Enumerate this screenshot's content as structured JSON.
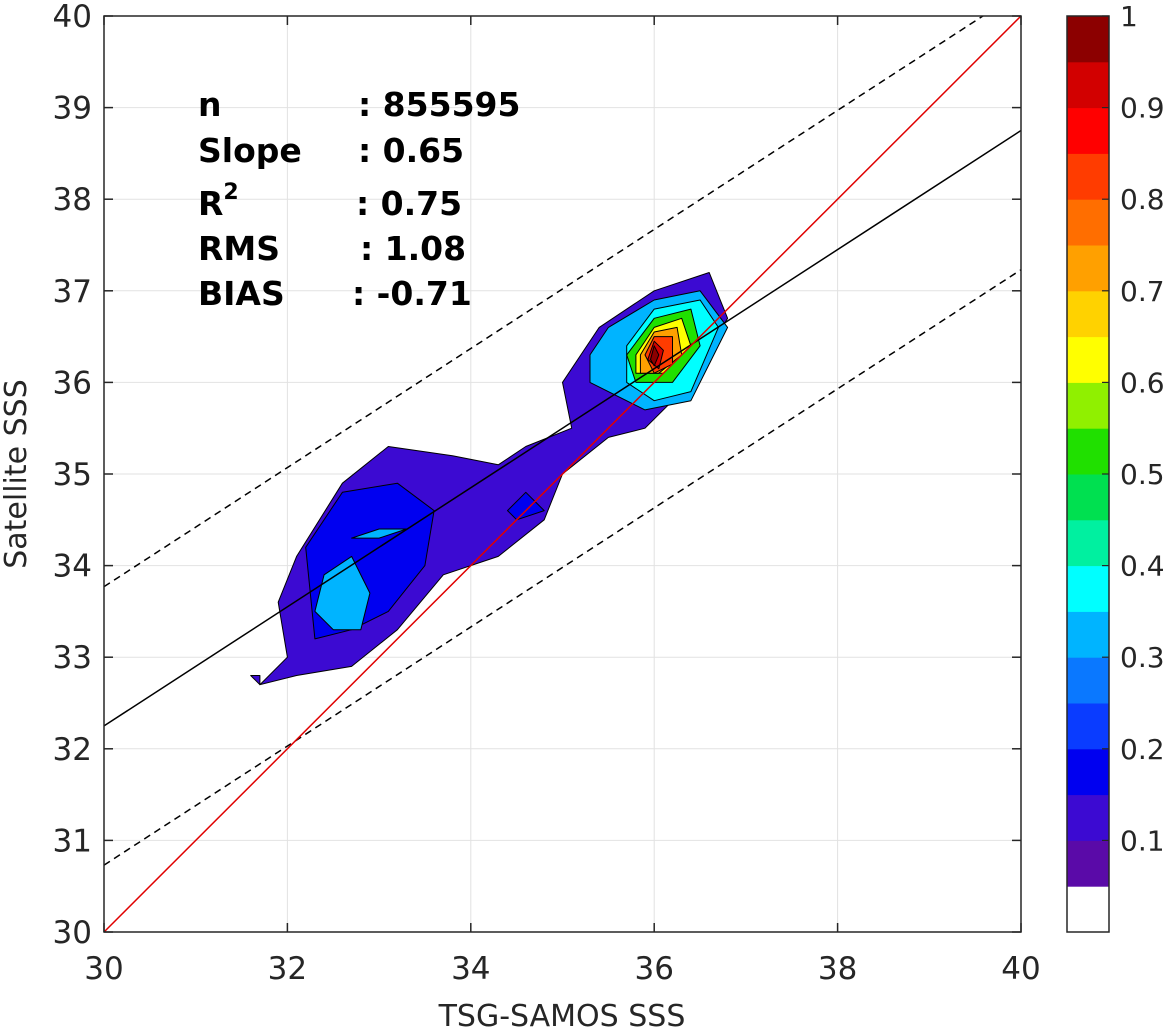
{
  "chart_data": {
    "type": "contour-density",
    "xlabel": "TSG-SAMOS SSS",
    "ylabel": "Satellite SSS",
    "xlim": [
      30,
      40
    ],
    "ylim": [
      30,
      40
    ],
    "xticks": [
      30,
      32,
      34,
      36,
      38,
      40
    ],
    "yticks": [
      30,
      31,
      32,
      33,
      34,
      35,
      36,
      37,
      38,
      39,
      40
    ],
    "grid": true,
    "stats": [
      {
        "label": "n",
        "value": ": 855595"
      },
      {
        "label": "Slope",
        "value": ": 0.65"
      },
      {
        "label": "R",
        "sup": "2",
        "value": ": 0.75"
      },
      {
        "label": "RMS",
        "value": ": 1.08"
      },
      {
        "label": "BIAS",
        "value": ": -0.71"
      }
    ],
    "lines": {
      "one_to_one": {
        "slope": 1,
        "intercept": 0,
        "color": "#e00000"
      },
      "regression": {
        "slope": 0.65,
        "intercept": 12.75,
        "color": "#000000"
      },
      "upper_bound": {
        "slope": 0.65,
        "intercept": 14.27,
        "style": "dashed"
      },
      "lower_bound": {
        "slope": 0.65,
        "intercept": 11.23,
        "style": "dashed"
      }
    },
    "colorbar": {
      "ticks": [
        "0.1",
        "0.2",
        "0.3",
        "0.4",
        "0.5",
        "0.6",
        "0.7",
        "0.8",
        "0.9",
        "1"
      ],
      "colors": [
        "#ffffff",
        "#5a0aa8",
        "#3c0ad2",
        "#0000f0",
        "#0a3cff",
        "#0a78ff",
        "#00b4ff",
        "#00ffff",
        "#00f0a0",
        "#00e050",
        "#20e000",
        "#90f000",
        "#ffff00",
        "#ffd200",
        "#ffa000",
        "#ff6e00",
        "#ff3c00",
        "#ff0000",
        "#d20000",
        "#8c0000"
      ]
    },
    "contour_levels": [
      {
        "level": 0.1,
        "regions": [
          [
            [
              31.7,
              32.7
            ],
            [
              32.0,
              33.0
            ],
            [
              31.9,
              33.6
            ],
            [
              32.1,
              34.1
            ],
            [
              32.6,
              34.9
            ],
            [
              33.1,
              35.3
            ],
            [
              33.8,
              35.2
            ],
            [
              34.3,
              35.1
            ],
            [
              34.6,
              35.3
            ],
            [
              35.1,
              35.5
            ],
            [
              35.0,
              36.0
            ],
            [
              35.4,
              36.6
            ],
            [
              36.0,
              37.0
            ],
            [
              36.6,
              37.2
            ],
            [
              36.8,
              36.7
            ],
            [
              36.3,
              35.9
            ],
            [
              35.9,
              35.5
            ],
            [
              35.5,
              35.4
            ],
            [
              35.0,
              35.0
            ],
            [
              34.8,
              34.5
            ],
            [
              34.3,
              34.1
            ],
            [
              33.7,
              33.9
            ],
            [
              33.2,
              33.3
            ],
            [
              32.7,
              32.9
            ],
            [
              32.1,
              32.8
            ],
            [
              31.7,
              32.7
            ]
          ],
          [
            [
              31.6,
              32.8
            ],
            [
              31.7,
              32.7
            ],
            [
              31.7,
              32.8
            ]
          ]
        ]
      },
      {
        "level": 0.15,
        "regions": [
          [
            [
              32.3,
              33.2
            ],
            [
              32.2,
              34.2
            ],
            [
              32.6,
              34.8
            ],
            [
              33.2,
              34.9
            ],
            [
              33.6,
              34.6
            ],
            [
              33.5,
              34.0
            ],
            [
              33.1,
              33.5
            ],
            [
              32.7,
              33.3
            ],
            [
              32.3,
              33.2
            ]
          ],
          [
            [
              34.4,
              34.6
            ],
            [
              34.6,
              34.8
            ],
            [
              34.8,
              34.6
            ],
            [
              34.5,
              34.5
            ]
          ]
        ]
      },
      {
        "level": 0.3,
        "regions": [
          [
            [
              32.3,
              33.5
            ],
            [
              32.4,
              33.9
            ],
            [
              32.7,
              34.1
            ],
            [
              32.9,
              33.7
            ],
            [
              32.8,
              33.3
            ],
            [
              32.5,
              33.3
            ]
          ],
          [
            [
              32.7,
              34.3
            ],
            [
              33.0,
              34.4
            ],
            [
              33.3,
              34.4
            ],
            [
              33.0,
              34.3
            ]
          ],
          [
            [
              35.3,
              36.3
            ],
            [
              35.5,
              36.6
            ],
            [
              36.0,
              36.9
            ],
            [
              36.5,
              37.0
            ],
            [
              36.8,
              36.6
            ],
            [
              36.4,
              35.8
            ],
            [
              35.9,
              35.7
            ],
            [
              35.3,
              36.0
            ]
          ]
        ]
      },
      {
        "level": 0.35,
        "regions": [
          [
            [
              35.7,
              36.4
            ],
            [
              36.0,
              36.8
            ],
            [
              36.5,
              36.9
            ],
            [
              36.7,
              36.6
            ],
            [
              36.4,
              35.9
            ],
            [
              36.0,
              35.8
            ],
            [
              35.7,
              36.0
            ]
          ]
        ]
      },
      {
        "level": 0.5,
        "regions": [
          [
            [
              35.7,
              36.3
            ],
            [
              36.0,
              36.7
            ],
            [
              36.4,
              36.8
            ],
            [
              36.5,
              36.4
            ],
            [
              36.2,
              36.0
            ],
            [
              35.8,
              36.0
            ]
          ]
        ]
      },
      {
        "level": 0.6,
        "regions": [
          [
            [
              35.8,
              36.3
            ],
            [
              36.0,
              36.6
            ],
            [
              36.3,
              36.7
            ],
            [
              36.4,
              36.4
            ],
            [
              36.1,
              36.1
            ],
            [
              35.8,
              36.1
            ]
          ]
        ]
      },
      {
        "level": 0.7,
        "regions": [
          [
            [
              35.85,
              36.3
            ],
            [
              36.0,
              36.55
            ],
            [
              36.25,
              36.6
            ],
            [
              36.3,
              36.3
            ],
            [
              36.05,
              36.1
            ],
            [
              35.85,
              36.1
            ]
          ]
        ]
      },
      {
        "level": 0.8,
        "regions": [
          [
            [
              35.9,
              36.3
            ],
            [
              36.0,
              36.5
            ],
            [
              36.2,
              36.5
            ],
            [
              36.2,
              36.2
            ],
            [
              36.0,
              36.1
            ]
          ]
        ]
      },
      {
        "level": 0.9,
        "regions": [
          [
            [
              35.93,
              36.25
            ],
            [
              36.0,
              36.45
            ],
            [
              36.1,
              36.35
            ],
            [
              36.05,
              36.15
            ]
          ]
        ]
      },
      {
        "level": 1.0,
        "regions": [
          [
            [
              35.96,
              36.25
            ],
            [
              36.0,
              36.4
            ],
            [
              36.05,
              36.3
            ],
            [
              36.0,
              36.18
            ]
          ]
        ]
      }
    ]
  }
}
